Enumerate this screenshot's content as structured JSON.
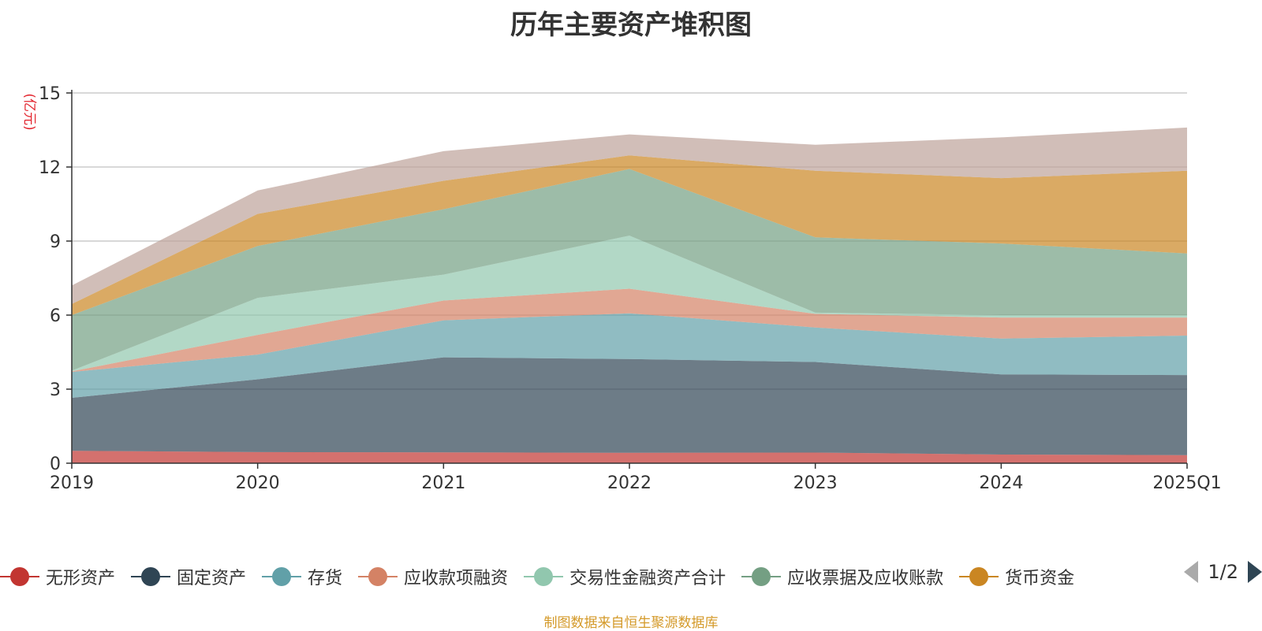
{
  "chart_data": {
    "type": "area",
    "stacked": true,
    "title": "历年主要资产堆积图",
    "ylabel": "(亿元)",
    "xlabel": "",
    "categories": [
      "2019",
      "2020",
      "2021",
      "2022",
      "2023",
      "2024",
      "2025Q1"
    ],
    "ylim": [
      0,
      15
    ],
    "yticks": [
      "0",
      "3",
      "6",
      "9",
      "12",
      "15"
    ],
    "grid": true,
    "legend_position": "bottom",
    "series": [
      {
        "name": "无形资产",
        "color": "#c23531",
        "values": [
          0.5,
          0.45,
          0.44,
          0.42,
          0.43,
          0.35,
          0.33
        ]
      },
      {
        "name": "固定资产",
        "color": "#2f4554",
        "values": [
          2.15,
          2.95,
          3.85,
          3.8,
          3.67,
          3.25,
          3.24
        ]
      },
      {
        "name": "存货",
        "color": "#61a0a8",
        "values": [
          1.05,
          1.0,
          1.5,
          1.85,
          1.4,
          1.45,
          1.6
        ]
      },
      {
        "name": "应收款项融资",
        "color": "#d48265",
        "values": [
          0.02,
          0.8,
          0.8,
          1.0,
          0.55,
          0.85,
          0.73
        ]
      },
      {
        "name": "交易性金融资产合计",
        "color": "#91c7ae",
        "values": [
          0.03,
          1.5,
          1.05,
          2.15,
          0.05,
          0.1,
          0.1
        ]
      },
      {
        "name": "应收票据及应收账款",
        "color": "#749f83",
        "values": [
          2.25,
          2.1,
          2.65,
          2.7,
          3.05,
          2.9,
          2.5
        ]
      },
      {
        "name": "货币资金",
        "color": "#ca8622",
        "values": [
          0.45,
          1.3,
          1.15,
          0.55,
          2.7,
          2.65,
          3.35
        ]
      },
      {
        "name": "",
        "color": "#bda29a",
        "values": [
          0.75,
          0.95,
          1.2,
          0.85,
          1.05,
          1.65,
          1.75
        ]
      }
    ]
  },
  "legend": {
    "items": [
      {
        "label": "无形资产",
        "color": "#c23531",
        "icon": "circle-marker-icon"
      },
      {
        "label": "固定资产",
        "color": "#2f4554",
        "icon": "circle-marker-icon"
      },
      {
        "label": "存货",
        "color": "#61a0a8",
        "icon": "circle-marker-icon"
      },
      {
        "label": "应收款项融资",
        "color": "#d48265",
        "icon": "circle-marker-icon"
      },
      {
        "label": "交易性金融资产合计",
        "color": "#91c7ae",
        "icon": "circle-marker-icon"
      },
      {
        "label": "应收票据及应收账款",
        "color": "#749f83",
        "icon": "circle-marker-icon"
      },
      {
        "label": "货币资金",
        "color": "#ca8622",
        "icon": "circle-marker-icon"
      }
    ],
    "page_indicator": "1/2",
    "prev_icon": "triangle-left-icon",
    "next_icon": "triangle-right-icon"
  },
  "source_note": "制图数据来自恒生聚源数据库"
}
